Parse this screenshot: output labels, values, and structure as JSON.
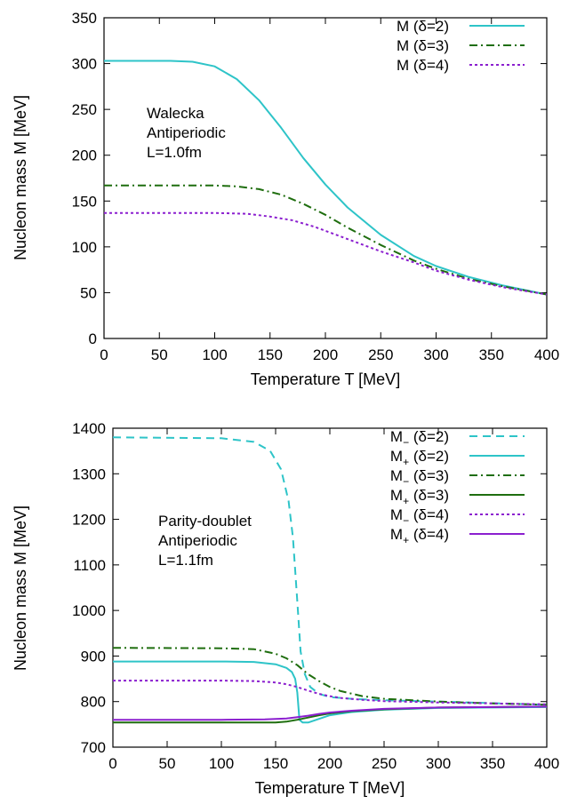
{
  "chart_data": [
    {
      "type": "line",
      "xlabel": "Temperature T [MeV]",
      "ylabel": "Nucleon mass M [MeV]",
      "xlim": [
        0,
        400
      ],
      "ylim": [
        0,
        350
      ],
      "xticks": [
        0,
        50,
        100,
        150,
        200,
        250,
        300,
        350,
        400
      ],
      "yticks": [
        0,
        50,
        100,
        150,
        200,
        250,
        300,
        350
      ],
      "grid": false,
      "legend_position": "top-right",
      "annotation": [
        "Walecka",
        "Antiperiodic",
        "L=1.0fm"
      ],
      "series": [
        {
          "name": "M (δ=2)",
          "color": "#2ec4c8",
          "dash": "solid",
          "x": [
            0,
            60,
            80,
            100,
            120,
            140,
            160,
            180,
            200,
            220,
            250,
            280,
            300,
            330,
            360,
            400
          ],
          "y": [
            303,
            303,
            302,
            297,
            283,
            260,
            230,
            197,
            168,
            143,
            113,
            90,
            79,
            67,
            58,
            48
          ]
        },
        {
          "name": "M (δ=3)",
          "color": "#1f6e0f",
          "dash": "dashdot",
          "x": [
            0,
            50,
            100,
            120,
            140,
            160,
            180,
            200,
            220,
            250,
            280,
            300,
            330,
            360,
            400
          ],
          "y": [
            167,
            167,
            167,
            166,
            163,
            157,
            147,
            135,
            121,
            102,
            85,
            76,
            65,
            57,
            48
          ]
        },
        {
          "name": "M (δ=4)",
          "color": "#8b1fcf",
          "dash": "dotted",
          "x": [
            0,
            50,
            100,
            130,
            150,
            170,
            190,
            210,
            230,
            250,
            280,
            300,
            330,
            360,
            400
          ],
          "y": [
            137,
            137,
            137,
            136,
            133,
            129,
            122,
            113,
            104,
            95,
            83,
            74,
            64,
            56,
            48
          ]
        }
      ]
    },
    {
      "type": "line",
      "xlabel": "Temperature T [MeV]",
      "ylabel": "Nucleon mass M [MeV]",
      "xlim": [
        0,
        400
      ],
      "ylim": [
        700,
        1400
      ],
      "xticks": [
        0,
        50,
        100,
        150,
        200,
        250,
        300,
        350,
        400
      ],
      "yticks": [
        700,
        800,
        900,
        1000,
        1100,
        1200,
        1300,
        1400
      ],
      "grid": false,
      "legend_position": "top-right",
      "annotation": [
        "Parity-doublet",
        "Antiperiodic",
        "L=1.1fm"
      ],
      "series": [
        {
          "name": "M− (δ=2)",
          "label_main": "M",
          "label_sub": "−",
          "label_rest": " (δ=2)",
          "color": "#2ec4c8",
          "dash": "dashed",
          "x": [
            0,
            100,
            130,
            145,
            155,
            162,
            166,
            170,
            173,
            177,
            182,
            190,
            200,
            220,
            250,
            300,
            400
          ],
          "y": [
            1380,
            1378,
            1370,
            1350,
            1310,
            1240,
            1160,
            1020,
            910,
            860,
            832,
            817,
            810,
            806,
            803,
            800,
            793
          ]
        },
        {
          "name": "M+ (δ=2)",
          "label_main": "M",
          "label_sub": "+",
          "label_rest": " (δ=2)",
          "color": "#2ec4c8",
          "dash": "solid",
          "x": [
            0,
            100,
            130,
            150,
            160,
            165,
            168,
            170,
            172,
            175,
            180,
            190,
            200,
            220,
            250,
            300,
            400
          ],
          "y": [
            888,
            888,
            887,
            882,
            874,
            865,
            850,
            820,
            760,
            754,
            754,
            762,
            770,
            777,
            782,
            786,
            788
          ]
        },
        {
          "name": "M− (δ=3)",
          "label_main": "M",
          "label_sub": "−",
          "label_rest": " (δ=3)",
          "color": "#1f6e0f",
          "dash": "dashdot",
          "x": [
            0,
            100,
            130,
            150,
            160,
            170,
            180,
            190,
            200,
            210,
            230,
            250,
            300,
            350,
            400
          ],
          "y": [
            918,
            917,
            915,
            905,
            895,
            880,
            860,
            845,
            832,
            823,
            812,
            806,
            800,
            796,
            793
          ]
        },
        {
          "name": "M+ (δ=3)",
          "label_main": "M",
          "label_sub": "+",
          "label_rest": " (δ=3)",
          "color": "#1f6e0f",
          "dash": "solid",
          "x": [
            0,
            100,
            150,
            160,
            170,
            180,
            190,
            200,
            220,
            250,
            300,
            350,
            400
          ],
          "y": [
            754,
            754,
            754,
            756,
            760,
            765,
            770,
            774,
            779,
            783,
            787,
            788,
            789
          ]
        },
        {
          "name": "M− (δ=4)",
          "label_main": "M",
          "label_sub": "−",
          "label_rest": " (δ=4)",
          "color": "#8b1fcf",
          "dash": "dotted",
          "x": [
            0,
            100,
            130,
            150,
            160,
            170,
            180,
            190,
            200,
            210,
            230,
            250,
            300,
            350,
            400
          ],
          "y": [
            846,
            846,
            845,
            842,
            838,
            832,
            824,
            817,
            812,
            808,
            804,
            801,
            798,
            796,
            794
          ]
        },
        {
          "name": "M+ (δ=4)",
          "label_main": "M",
          "label_sub": "+",
          "label_rest": " (δ=4)",
          "color": "#8b1fcf",
          "dash": "solid",
          "x": [
            0,
            100,
            140,
            160,
            170,
            180,
            190,
            200,
            220,
            250,
            300,
            350,
            400
          ],
          "y": [
            760,
            760,
            761,
            763,
            766,
            769,
            773,
            776,
            780,
            784,
            787,
            788,
            789
          ]
        }
      ]
    }
  ]
}
